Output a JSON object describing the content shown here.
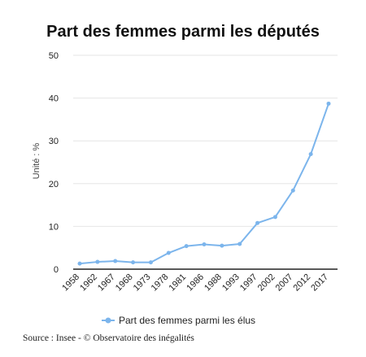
{
  "chart_data": {
    "type": "line",
    "title": "Part des femmes parmi les députés",
    "ylabel": "Unité : %",
    "xlabel": "",
    "ylim": [
      0,
      50
    ],
    "yticks": [
      0,
      10,
      20,
      30,
      40,
      50
    ],
    "grid": "horizontal",
    "legend_position": "bottom",
    "categories": [
      "1958",
      "1962",
      "1967",
      "1968",
      "1973",
      "1978",
      "1981",
      "1986",
      "1988",
      "1993",
      "1997",
      "2002",
      "2007",
      "2012",
      "2017"
    ],
    "series": [
      {
        "name": "Part des femmes parmi les élus",
        "color": "#7cb5ec",
        "values": [
          1.3,
          1.7,
          1.9,
          1.6,
          1.6,
          3.8,
          5.4,
          5.8,
          5.5,
          5.9,
          10.8,
          12.2,
          18.4,
          26.9,
          38.7
        ]
      }
    ]
  },
  "source": "Source : Insee - © Observatoire des inégalités"
}
